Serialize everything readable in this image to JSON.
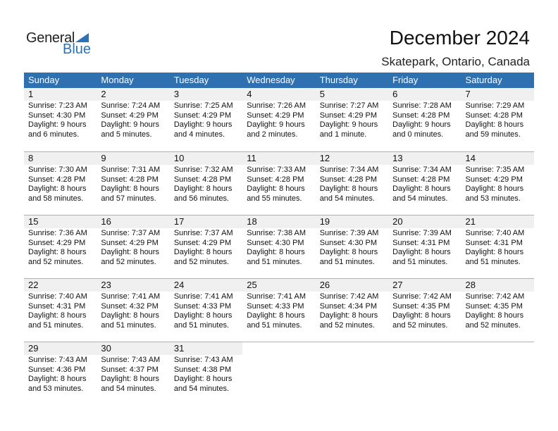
{
  "logo": {
    "text1": "General",
    "text2": "Blue"
  },
  "title": "December 2024",
  "location": "Skatepark, Ontario, Canada",
  "weekdays": [
    "Sunday",
    "Monday",
    "Tuesday",
    "Wednesday",
    "Thursday",
    "Friday",
    "Saturday"
  ],
  "weeks": [
    [
      {
        "d": "1",
        "sr": "Sunrise: 7:23 AM",
        "ss": "Sunset: 4:30 PM",
        "dl": "Daylight: 9 hours",
        "dm": "and 6 minutes."
      },
      {
        "d": "2",
        "sr": "Sunrise: 7:24 AM",
        "ss": "Sunset: 4:29 PM",
        "dl": "Daylight: 9 hours",
        "dm": "and 5 minutes."
      },
      {
        "d": "3",
        "sr": "Sunrise: 7:25 AM",
        "ss": "Sunset: 4:29 PM",
        "dl": "Daylight: 9 hours",
        "dm": "and 4 minutes."
      },
      {
        "d": "4",
        "sr": "Sunrise: 7:26 AM",
        "ss": "Sunset: 4:29 PM",
        "dl": "Daylight: 9 hours",
        "dm": "and 2 minutes."
      },
      {
        "d": "5",
        "sr": "Sunrise: 7:27 AM",
        "ss": "Sunset: 4:29 PM",
        "dl": "Daylight: 9 hours",
        "dm": "and 1 minute."
      },
      {
        "d": "6",
        "sr": "Sunrise: 7:28 AM",
        "ss": "Sunset: 4:28 PM",
        "dl": "Daylight: 9 hours",
        "dm": "and 0 minutes."
      },
      {
        "d": "7",
        "sr": "Sunrise: 7:29 AM",
        "ss": "Sunset: 4:28 PM",
        "dl": "Daylight: 8 hours",
        "dm": "and 59 minutes."
      }
    ],
    [
      {
        "d": "8",
        "sr": "Sunrise: 7:30 AM",
        "ss": "Sunset: 4:28 PM",
        "dl": "Daylight: 8 hours",
        "dm": "and 58 minutes."
      },
      {
        "d": "9",
        "sr": "Sunrise: 7:31 AM",
        "ss": "Sunset: 4:28 PM",
        "dl": "Daylight: 8 hours",
        "dm": "and 57 minutes."
      },
      {
        "d": "10",
        "sr": "Sunrise: 7:32 AM",
        "ss": "Sunset: 4:28 PM",
        "dl": "Daylight: 8 hours",
        "dm": "and 56 minutes."
      },
      {
        "d": "11",
        "sr": "Sunrise: 7:33 AM",
        "ss": "Sunset: 4:28 PM",
        "dl": "Daylight: 8 hours",
        "dm": "and 55 minutes."
      },
      {
        "d": "12",
        "sr": "Sunrise: 7:34 AM",
        "ss": "Sunset: 4:28 PM",
        "dl": "Daylight: 8 hours",
        "dm": "and 54 minutes."
      },
      {
        "d": "13",
        "sr": "Sunrise: 7:34 AM",
        "ss": "Sunset: 4:28 PM",
        "dl": "Daylight: 8 hours",
        "dm": "and 54 minutes."
      },
      {
        "d": "14",
        "sr": "Sunrise: 7:35 AM",
        "ss": "Sunset: 4:29 PM",
        "dl": "Daylight: 8 hours",
        "dm": "and 53 minutes."
      }
    ],
    [
      {
        "d": "15",
        "sr": "Sunrise: 7:36 AM",
        "ss": "Sunset: 4:29 PM",
        "dl": "Daylight: 8 hours",
        "dm": "and 52 minutes."
      },
      {
        "d": "16",
        "sr": "Sunrise: 7:37 AM",
        "ss": "Sunset: 4:29 PM",
        "dl": "Daylight: 8 hours",
        "dm": "and 52 minutes."
      },
      {
        "d": "17",
        "sr": "Sunrise: 7:37 AM",
        "ss": "Sunset: 4:29 PM",
        "dl": "Daylight: 8 hours",
        "dm": "and 52 minutes."
      },
      {
        "d": "18",
        "sr": "Sunrise: 7:38 AM",
        "ss": "Sunset: 4:30 PM",
        "dl": "Daylight: 8 hours",
        "dm": "and 51 minutes."
      },
      {
        "d": "19",
        "sr": "Sunrise: 7:39 AM",
        "ss": "Sunset: 4:30 PM",
        "dl": "Daylight: 8 hours",
        "dm": "and 51 minutes."
      },
      {
        "d": "20",
        "sr": "Sunrise: 7:39 AM",
        "ss": "Sunset: 4:31 PM",
        "dl": "Daylight: 8 hours",
        "dm": "and 51 minutes."
      },
      {
        "d": "21",
        "sr": "Sunrise: 7:40 AM",
        "ss": "Sunset: 4:31 PM",
        "dl": "Daylight: 8 hours",
        "dm": "and 51 minutes."
      }
    ],
    [
      {
        "d": "22",
        "sr": "Sunrise: 7:40 AM",
        "ss": "Sunset: 4:31 PM",
        "dl": "Daylight: 8 hours",
        "dm": "and 51 minutes."
      },
      {
        "d": "23",
        "sr": "Sunrise: 7:41 AM",
        "ss": "Sunset: 4:32 PM",
        "dl": "Daylight: 8 hours",
        "dm": "and 51 minutes."
      },
      {
        "d": "24",
        "sr": "Sunrise: 7:41 AM",
        "ss": "Sunset: 4:33 PM",
        "dl": "Daylight: 8 hours",
        "dm": "and 51 minutes."
      },
      {
        "d": "25",
        "sr": "Sunrise: 7:41 AM",
        "ss": "Sunset: 4:33 PM",
        "dl": "Daylight: 8 hours",
        "dm": "and 51 minutes."
      },
      {
        "d": "26",
        "sr": "Sunrise: 7:42 AM",
        "ss": "Sunset: 4:34 PM",
        "dl": "Daylight: 8 hours",
        "dm": "and 52 minutes."
      },
      {
        "d": "27",
        "sr": "Sunrise: 7:42 AM",
        "ss": "Sunset: 4:35 PM",
        "dl": "Daylight: 8 hours",
        "dm": "and 52 minutes."
      },
      {
        "d": "28",
        "sr": "Sunrise: 7:42 AM",
        "ss": "Sunset: 4:35 PM",
        "dl": "Daylight: 8 hours",
        "dm": "and 52 minutes."
      }
    ],
    [
      {
        "d": "29",
        "sr": "Sunrise: 7:43 AM",
        "ss": "Sunset: 4:36 PM",
        "dl": "Daylight: 8 hours",
        "dm": "and 53 minutes."
      },
      {
        "d": "30",
        "sr": "Sunrise: 7:43 AM",
        "ss": "Sunset: 4:37 PM",
        "dl": "Daylight: 8 hours",
        "dm": "and 54 minutes."
      },
      {
        "d": "31",
        "sr": "Sunrise: 7:43 AM",
        "ss": "Sunset: 4:38 PM",
        "dl": "Daylight: 8 hours",
        "dm": "and 54 minutes."
      },
      null,
      null,
      null,
      null
    ]
  ],
  "colors": {
    "header": "#2f70b1",
    "brand": "#2a73b8",
    "day_band": "#f0f0f0"
  }
}
